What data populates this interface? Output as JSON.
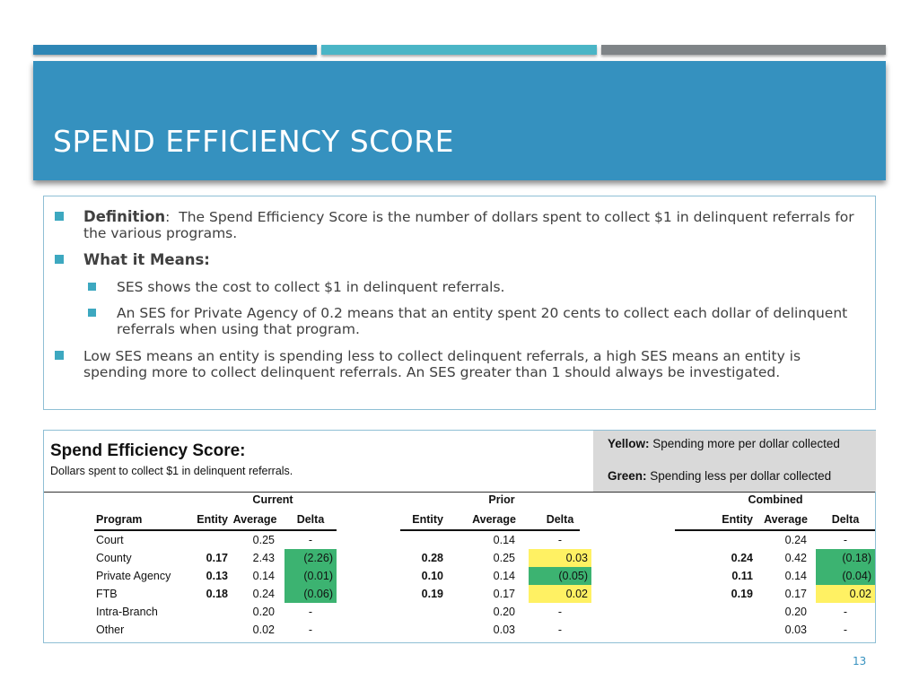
{
  "slide": {
    "title": "SPEND EFFICIENCY SCORE",
    "page_number": "13"
  },
  "bullets": {
    "definition_label": "Definition",
    "definition_colon": ":",
    "definition_text": "The Spend Efficiency Score is the number of dollars spent to collect $1 in delinquent referrals for the various programs.",
    "means_label": "What it Means:",
    "sub1": "SES shows the cost to collect $1 in delinquent referrals.",
    "sub2": "An SES for Private Agency of 0.2 means that an entity spent 20 cents to collect each dollar of delinquent referrals when using that program.",
    "low_high": "Low SES means an entity is spending less to collect delinquent referrals, a high SES means an entity is spending more to collect delinquent referrals. An SES greater than 1 should always be investigated."
  },
  "table": {
    "title": "Spend Efficiency Score:",
    "subtitle": "Dollars spent to collect $1 in delinquent referrals.",
    "legend": {
      "yellow_label": "Yellow:",
      "yellow_text": "Spending more per dollar collected",
      "green_label": "Green:",
      "green_text": "Spending less per dollar collected",
      "yellow_color": "#fff163",
      "green_color": "#3cb371"
    },
    "groups": [
      "Current",
      "Prior",
      "Combined"
    ],
    "program_header": "Program",
    "col_headers": [
      "Entity",
      "Average",
      "Delta"
    ],
    "programs": [
      "Court",
      "County",
      "Private Agency",
      "FTB",
      "Intra-Branch",
      "Other"
    ],
    "current": [
      {
        "entity": "",
        "average": "0.25",
        "delta": "-",
        "hl": ""
      },
      {
        "entity": "0.17",
        "average": "2.43",
        "delta": "(2.26)",
        "hl": "green"
      },
      {
        "entity": "0.13",
        "average": "0.14",
        "delta": "(0.01)",
        "hl": "green"
      },
      {
        "entity": "0.18",
        "average": "0.24",
        "delta": "(0.06)",
        "hl": "green"
      },
      {
        "entity": "",
        "average": "0.20",
        "delta": "-",
        "hl": ""
      },
      {
        "entity": "",
        "average": "0.02",
        "delta": "-",
        "hl": ""
      }
    ],
    "prior": [
      {
        "entity": "",
        "average": "0.14",
        "delta": "-",
        "hl": ""
      },
      {
        "entity": "0.28",
        "average": "0.25",
        "delta": "0.03",
        "hl": "yellow"
      },
      {
        "entity": "0.10",
        "average": "0.14",
        "delta": "(0.05)",
        "hl": "green"
      },
      {
        "entity": "0.19",
        "average": "0.17",
        "delta": "0.02",
        "hl": "yellow"
      },
      {
        "entity": "",
        "average": "0.20",
        "delta": "-",
        "hl": ""
      },
      {
        "entity": "",
        "average": "0.03",
        "delta": "-",
        "hl": ""
      }
    ],
    "combined": [
      {
        "entity": "",
        "average": "0.24",
        "delta": "-",
        "hl": ""
      },
      {
        "entity": "0.24",
        "average": "0.42",
        "delta": "(0.18)",
        "hl": "green"
      },
      {
        "entity": "0.11",
        "average": "0.14",
        "delta": "(0.04)",
        "hl": "green"
      },
      {
        "entity": "0.19",
        "average": "0.17",
        "delta": "0.02",
        "hl": "yellow"
      },
      {
        "entity": "",
        "average": "0.20",
        "delta": "-",
        "hl": ""
      },
      {
        "entity": "",
        "average": "0.03",
        "delta": "-",
        "hl": ""
      }
    ]
  }
}
